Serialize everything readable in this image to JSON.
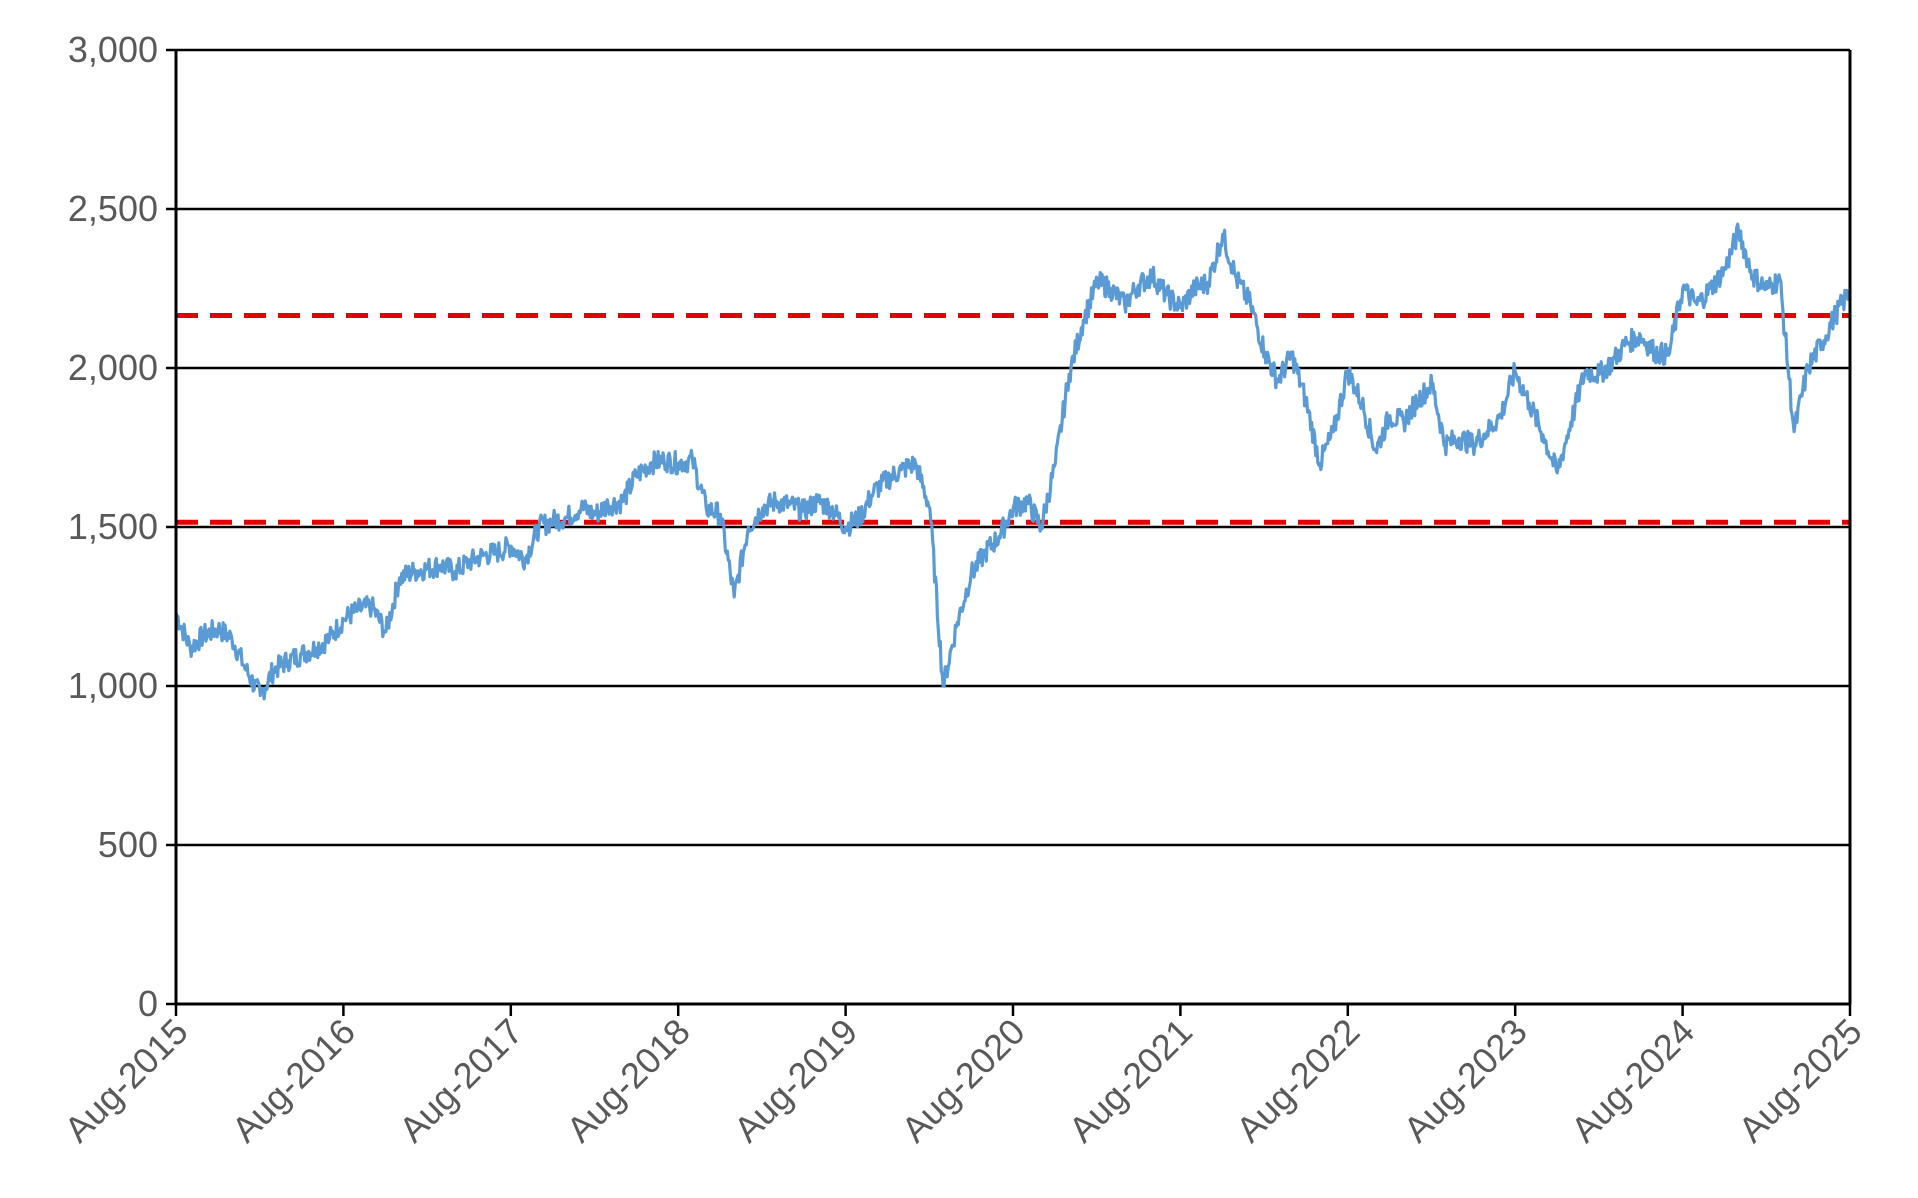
{
  "chart_data": {
    "type": "line",
    "title": "",
    "xlabel": "",
    "ylabel": "",
    "ylim": [
      0,
      3000
    ],
    "xlim": [
      "2015-08",
      "2025-08"
    ],
    "yticks": [
      0,
      500,
      1000,
      1500,
      2000,
      2500,
      3000
    ],
    "ytick_labels": [
      "0",
      "500",
      "1,000",
      "1,500",
      "2,000",
      "2,500",
      "3,000"
    ],
    "xtick_labels": [
      "Aug-2015",
      "Aug-2016",
      "Aug-2017",
      "Aug-2018",
      "Aug-2019",
      "Aug-2020",
      "Aug-2021",
      "Aug-2022",
      "Aug-2023",
      "Aug-2024",
      "Aug-2025"
    ],
    "grid": "horizontal",
    "legend": "none",
    "series": [
      {
        "color": "#5b9bd5",
        "x": [
          "2015-08-01",
          "2015-09-01",
          "2015-10-01",
          "2015-11-01",
          "2015-12-01",
          "2016-01-01",
          "2016-02-01",
          "2016-03-01",
          "2016-04-01",
          "2016-05-01",
          "2016-06-01",
          "2016-07-01",
          "2016-08-01",
          "2016-09-01",
          "2016-10-01",
          "2016-11-01",
          "2016-12-01",
          "2017-01-01",
          "2017-02-01",
          "2017-03-01",
          "2017-04-01",
          "2017-05-01",
          "2017-06-01",
          "2017-07-01",
          "2017-08-01",
          "2017-09-01",
          "2017-10-01",
          "2017-11-01",
          "2017-12-01",
          "2018-01-01",
          "2018-02-01",
          "2018-03-01",
          "2018-04-01",
          "2018-05-01",
          "2018-06-01",
          "2018-07-01",
          "2018-08-01",
          "2018-09-01",
          "2018-10-01",
          "2018-11-01",
          "2018-12-01",
          "2019-01-01",
          "2019-02-01",
          "2019-03-01",
          "2019-04-01",
          "2019-05-01",
          "2019-06-01",
          "2019-07-01",
          "2019-08-01",
          "2019-09-01",
          "2019-10-01",
          "2019-11-01",
          "2019-12-01",
          "2020-01-01",
          "2020-02-01",
          "2020-03-01",
          "2020-04-01",
          "2020-05-01",
          "2020-06-01",
          "2020-07-01",
          "2020-08-01",
          "2020-09-01",
          "2020-10-01",
          "2020-11-01",
          "2020-12-01",
          "2021-01-01",
          "2021-02-01",
          "2021-03-01",
          "2021-04-01",
          "2021-05-01",
          "2021-06-01",
          "2021-07-01",
          "2021-08-01",
          "2021-09-01",
          "2021-10-01",
          "2021-11-01",
          "2021-12-01",
          "2022-01-01",
          "2022-02-01",
          "2022-03-01",
          "2022-04-01",
          "2022-05-01",
          "2022-06-01",
          "2022-07-01",
          "2022-08-01",
          "2022-09-01",
          "2022-10-01",
          "2022-11-01",
          "2022-12-01",
          "2023-01-01",
          "2023-02-01",
          "2023-03-01",
          "2023-04-01",
          "2023-05-01",
          "2023-06-01",
          "2023-07-01",
          "2023-08-01",
          "2023-09-01",
          "2023-10-01",
          "2023-11-01",
          "2023-12-01",
          "2024-01-01",
          "2024-02-01",
          "2024-03-01",
          "2024-04-01",
          "2024-05-01",
          "2024-06-01",
          "2024-07-01",
          "2024-08-01",
          "2024-09-01",
          "2024-10-01",
          "2024-11-01",
          "2024-12-01",
          "2025-01-01",
          "2025-02-01",
          "2025-03-01",
          "2025-04-01",
          "2025-05-01",
          "2025-06-01",
          "2025-07-01",
          "2025-08-01"
        ],
        "values": [
          1230,
          1120,
          1160,
          1180,
          1150,
          1050,
          970,
          1050,
          1080,
          1100,
          1120,
          1150,
          1210,
          1240,
          1250,
          1170,
          1340,
          1360,
          1370,
          1380,
          1360,
          1390,
          1410,
          1420,
          1440,
          1400,
          1500,
          1520,
          1530,
          1560,
          1540,
          1570,
          1580,
          1660,
          1700,
          1710,
          1700,
          1710,
          1560,
          1540,
          1280,
          1500,
          1560,
          1580,
          1570,
          1550,
          1580,
          1560,
          1500,
          1530,
          1610,
          1650,
          1680,
          1700,
          1560,
          1000,
          1200,
          1350,
          1420,
          1470,
          1560,
          1580,
          1500,
          1700,
          1980,
          2150,
          2270,
          2250,
          2200,
          2260,
          2290,
          2230,
          2190,
          2250,
          2270,
          2420,
          2280,
          2200,
          2050,
          1960,
          2040,
          1900,
          1700,
          1800,
          1990,
          1890,
          1740,
          1850,
          1830,
          1900,
          1950,
          1760,
          1780,
          1760,
          1800,
          1850,
          1990,
          1890,
          1790,
          1670,
          1830,
          1990,
          1980,
          2020,
          2080,
          2100,
          2050,
          2040,
          2250,
          2200,
          2250,
          2310,
          2430,
          2290,
          2250,
          2280,
          1800,
          2000,
          2080,
          2170,
          2240
        ]
      },
      {
        "color": "#e00000",
        "style": "dashed",
        "x": [
          "2015-08-01",
          "2025-08-01"
        ],
        "values": [
          2165,
          2165
        ]
      },
      {
        "color": "#e00000",
        "style": "dashed",
        "x": [
          "2015-08-01",
          "2025-08-01"
        ],
        "values": [
          1515,
          1515
        ]
      }
    ]
  }
}
